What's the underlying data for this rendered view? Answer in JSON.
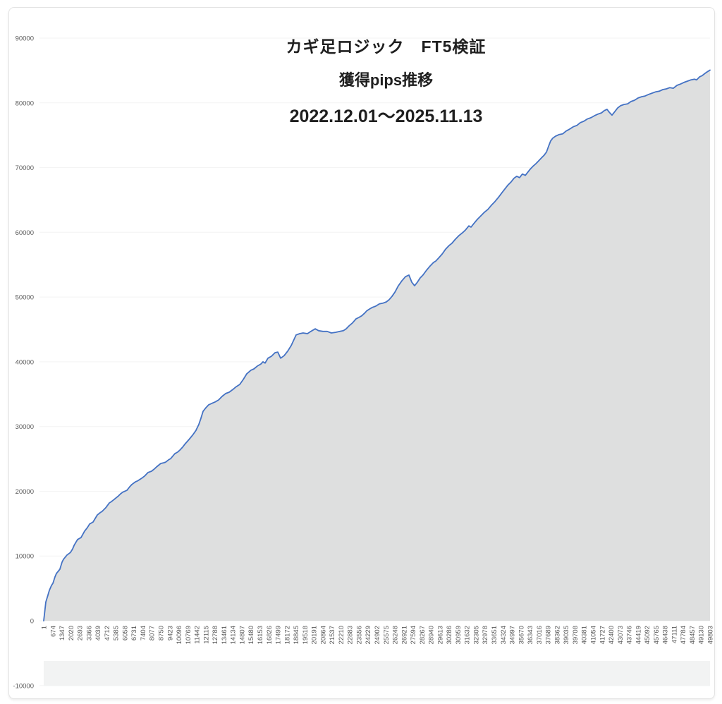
{
  "chart_data": {
    "type": "area",
    "title": "カギ足ロジック　FT5検証",
    "subtitle": "獲得pips推移",
    "period": "2022.12.01～2025.11.13",
    "xlabel": "",
    "ylabel": "",
    "ylim": [
      -10000,
      90000
    ],
    "xlim": [
      1,
      49803
    ],
    "grid": "faint-horizontal",
    "legend": "none",
    "yticks": [
      90000,
      80000,
      70000,
      60000,
      50000,
      40000,
      30000,
      20000,
      10000,
      0,
      -10000
    ],
    "xticks": [
      1,
      674,
      1347,
      2020,
      2693,
      3366,
      4039,
      4712,
      5385,
      6058,
      6731,
      7404,
      8077,
      8750,
      9423,
      10096,
      10769,
      11442,
      12115,
      12788,
      13461,
      14134,
      14807,
      15480,
      16153,
      16826,
      17499,
      18172,
      18845,
      19518,
      20191,
      20864,
      21537,
      22210,
      22883,
      23556,
      24229,
      24902,
      25575,
      26248,
      26921,
      27594,
      28267,
      28940,
      29613,
      30286,
      30959,
      31632,
      32305,
      32978,
      33651,
      34324,
      34997,
      35670,
      36343,
      37016,
      37689,
      38362,
      39035,
      39708,
      40381,
      41054,
      41727,
      42400,
      43073,
      43746,
      44419,
      45092,
      45765,
      46438,
      47111,
      47784,
      48457,
      49130,
      49803
    ],
    "colors": {
      "line": "#4472C4",
      "fill": "#DEDFDF",
      "band": "#F2F3F3",
      "grid": "#F3F3F3",
      "tick_text": "#595959",
      "title_text": "#1F1F1F",
      "card_border": "#E3E3E3"
    },
    "series": [
      {
        "name": "獲得pips",
        "points": [
          [
            1,
            0
          ],
          [
            160,
            2900
          ],
          [
            320,
            4000
          ],
          [
            420,
            4700
          ],
          [
            580,
            5450
          ],
          [
            690,
            5800
          ],
          [
            840,
            6750
          ],
          [
            950,
            7300
          ],
          [
            1210,
            7950
          ],
          [
            1370,
            9050
          ],
          [
            1480,
            9500
          ],
          [
            1740,
            10150
          ],
          [
            2000,
            10550
          ],
          [
            2160,
            11100
          ],
          [
            2270,
            11650
          ],
          [
            2530,
            12550
          ],
          [
            2790,
            12850
          ],
          [
            3060,
            13850
          ],
          [
            3270,
            14400
          ],
          [
            3430,
            14950
          ],
          [
            3690,
            15250
          ],
          [
            3850,
            15800
          ],
          [
            4010,
            16350
          ],
          [
            4220,
            16700
          ],
          [
            4370,
            16900
          ],
          [
            4640,
            17450
          ],
          [
            4900,
            18200
          ],
          [
            5060,
            18400
          ],
          [
            5270,
            18750
          ],
          [
            5590,
            19300
          ],
          [
            5740,
            19600
          ],
          [
            5900,
            19850
          ],
          [
            6220,
            20150
          ],
          [
            6430,
            20700
          ],
          [
            6590,
            21050
          ],
          [
            6850,
            21450
          ],
          [
            7010,
            21600
          ],
          [
            7170,
            21800
          ],
          [
            7380,
            22100
          ],
          [
            7540,
            22350
          ],
          [
            7800,
            22900
          ],
          [
            8060,
            23100
          ],
          [
            8270,
            23450
          ],
          [
            8430,
            23750
          ],
          [
            8750,
            24300
          ],
          [
            8960,
            24400
          ],
          [
            9120,
            24500
          ],
          [
            9330,
            24850
          ],
          [
            9490,
            25050
          ],
          [
            9800,
            25800
          ],
          [
            10010,
            26050
          ],
          [
            10170,
            26350
          ],
          [
            10380,
            26800
          ],
          [
            10540,
            27250
          ],
          [
            10860,
            28000
          ],
          [
            11120,
            28650
          ],
          [
            11380,
            29400
          ],
          [
            11590,
            30300
          ],
          [
            11750,
            31250
          ],
          [
            11910,
            32350
          ],
          [
            12120,
            32900
          ],
          [
            12330,
            33350
          ],
          [
            12540,
            33550
          ],
          [
            12810,
            33800
          ],
          [
            13070,
            34100
          ],
          [
            13330,
            34650
          ],
          [
            13600,
            35100
          ],
          [
            13860,
            35300
          ],
          [
            14120,
            35700
          ],
          [
            14390,
            36150
          ],
          [
            14650,
            36500
          ],
          [
            14910,
            37250
          ],
          [
            15180,
            38150
          ],
          [
            15490,
            38700
          ],
          [
            15710,
            38900
          ],
          [
            15970,
            39350
          ],
          [
            16230,
            39650
          ],
          [
            16390,
            40000
          ],
          [
            16550,
            39800
          ],
          [
            16760,
            40550
          ],
          [
            17020,
            40850
          ],
          [
            17290,
            41400
          ],
          [
            17500,
            41500
          ],
          [
            17710,
            40550
          ],
          [
            17970,
            40950
          ],
          [
            18240,
            41650
          ],
          [
            18500,
            42500
          ],
          [
            18870,
            44150
          ],
          [
            19130,
            44350
          ],
          [
            19390,
            44450
          ],
          [
            19710,
            44350
          ],
          [
            19970,
            44700
          ],
          [
            20290,
            45100
          ],
          [
            20550,
            44800
          ],
          [
            20870,
            44700
          ],
          [
            21190,
            44700
          ],
          [
            21500,
            44450
          ],
          [
            21820,
            44550
          ],
          [
            22140,
            44700
          ],
          [
            22400,
            44800
          ],
          [
            22610,
            45100
          ],
          [
            22820,
            45550
          ],
          [
            23080,
            46000
          ],
          [
            23350,
            46650
          ],
          [
            23560,
            46850
          ],
          [
            23770,
            47100
          ],
          [
            23980,
            47500
          ],
          [
            24140,
            47850
          ],
          [
            24350,
            48150
          ],
          [
            24560,
            48400
          ],
          [
            24820,
            48600
          ],
          [
            25090,
            48950
          ],
          [
            25350,
            49050
          ],
          [
            25610,
            49250
          ],
          [
            25820,
            49600
          ],
          [
            26030,
            50100
          ],
          [
            26250,
            50750
          ],
          [
            26510,
            51750
          ],
          [
            26770,
            52500
          ],
          [
            27040,
            53150
          ],
          [
            27300,
            53400
          ],
          [
            27510,
            52300
          ],
          [
            27720,
            51750
          ],
          [
            27930,
            52300
          ],
          [
            28140,
            52950
          ],
          [
            28350,
            53400
          ],
          [
            28620,
            54150
          ],
          [
            28880,
            54800
          ],
          [
            29140,
            55350
          ],
          [
            29300,
            55550
          ],
          [
            29510,
            56000
          ],
          [
            29780,
            56650
          ],
          [
            30040,
            57400
          ],
          [
            30300,
            57950
          ],
          [
            30510,
            58300
          ],
          [
            30780,
            58950
          ],
          [
            31040,
            59500
          ],
          [
            31310,
            59950
          ],
          [
            31520,
            60350
          ],
          [
            31780,
            61000
          ],
          [
            31940,
            60800
          ],
          [
            32150,
            61350
          ],
          [
            32410,
            62000
          ],
          [
            32680,
            62550
          ],
          [
            32940,
            63100
          ],
          [
            33200,
            63550
          ],
          [
            33470,
            64200
          ],
          [
            33730,
            64750
          ],
          [
            33990,
            65400
          ],
          [
            34260,
            66150
          ],
          [
            34470,
            66700
          ],
          [
            34680,
            67250
          ],
          [
            34940,
            67800
          ],
          [
            35150,
            68350
          ],
          [
            35360,
            68650
          ],
          [
            35570,
            68450
          ],
          [
            35780,
            69000
          ],
          [
            36000,
            68800
          ],
          [
            36150,
            69200
          ],
          [
            36360,
            69750
          ],
          [
            36570,
            70200
          ],
          [
            36790,
            70600
          ],
          [
            37000,
            71050
          ],
          [
            37210,
            71500
          ],
          [
            37420,
            71950
          ],
          [
            37580,
            72400
          ],
          [
            37730,
            73250
          ],
          [
            37890,
            74100
          ],
          [
            38050,
            74550
          ],
          [
            38260,
            74850
          ],
          [
            38530,
            75100
          ],
          [
            38790,
            75200
          ],
          [
            39050,
            75650
          ],
          [
            39320,
            75950
          ],
          [
            39580,
            76300
          ],
          [
            39840,
            76500
          ],
          [
            40110,
            76950
          ],
          [
            40370,
            77150
          ],
          [
            40630,
            77500
          ],
          [
            40900,
            77700
          ],
          [
            41160,
            78000
          ],
          [
            41420,
            78250
          ],
          [
            41690,
            78450
          ],
          [
            41900,
            78800
          ],
          [
            42110,
            79000
          ],
          [
            42270,
            78550
          ],
          [
            42480,
            78100
          ],
          [
            42690,
            78650
          ],
          [
            42900,
            79200
          ],
          [
            43110,
            79550
          ],
          [
            43370,
            79750
          ],
          [
            43640,
            79850
          ],
          [
            43900,
            80200
          ],
          [
            44160,
            80400
          ],
          [
            44430,
            80750
          ],
          [
            44690,
            80950
          ],
          [
            44950,
            81050
          ],
          [
            45220,
            81300
          ],
          [
            45480,
            81500
          ],
          [
            45740,
            81700
          ],
          [
            46010,
            81800
          ],
          [
            46270,
            82050
          ],
          [
            46540,
            82150
          ],
          [
            46800,
            82350
          ],
          [
            47060,
            82250
          ],
          [
            47330,
            82700
          ],
          [
            47590,
            82900
          ],
          [
            47850,
            83150
          ],
          [
            48120,
            83350
          ],
          [
            48380,
            83550
          ],
          [
            48640,
            83650
          ],
          [
            48800,
            83550
          ],
          [
            49010,
            84000
          ],
          [
            49220,
            84200
          ],
          [
            49430,
            84550
          ],
          [
            49640,
            84850
          ],
          [
            49803,
            85050
          ]
        ]
      }
    ]
  }
}
